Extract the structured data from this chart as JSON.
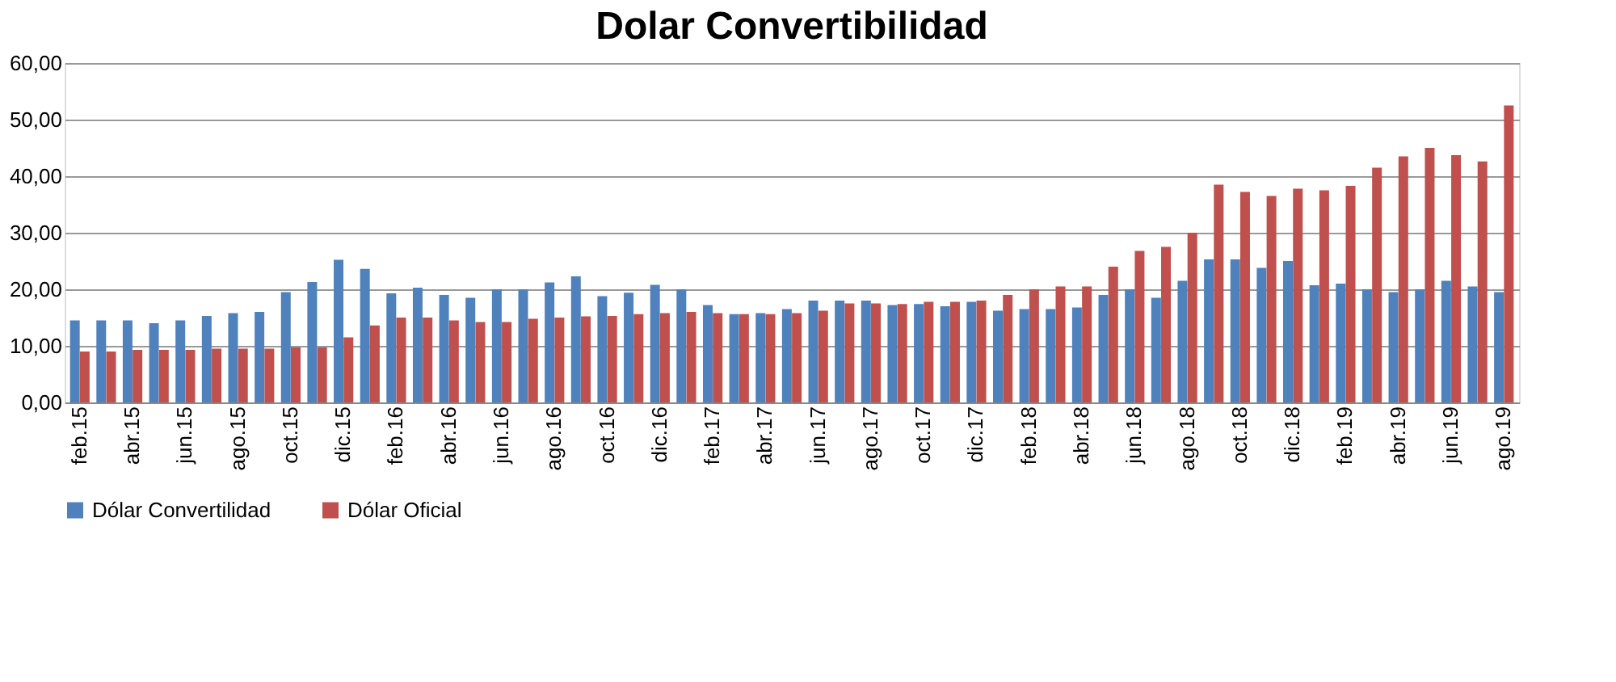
{
  "chart_data": {
    "type": "bar",
    "title": "Dolar Convertibilidad",
    "categories": [
      "feb.15",
      null,
      "abr.15",
      null,
      "jun.15",
      null,
      "ago.15",
      null,
      "oct.15",
      null,
      "dic.15",
      null,
      "feb.16",
      null,
      "abr.16",
      null,
      "jun.16",
      null,
      "ago.16",
      null,
      "oct.16",
      null,
      "dic.16",
      null,
      "feb.17",
      null,
      "abr.17",
      null,
      "jun.17",
      null,
      "ago.17",
      null,
      "oct.17",
      null,
      "dic.17",
      null,
      "feb.18",
      null,
      "abr.18",
      null,
      "jun.18",
      null,
      "ago.18",
      null,
      "oct.18",
      null,
      "dic.18",
      null,
      "feb.19",
      null,
      "abr.19",
      null,
      "jun.19",
      null,
      "ago.19"
    ],
    "series": [
      {
        "name": "Dólar Convertilidad",
        "color": "#4f81bd",
        "values": [
          14.5,
          14.5,
          14.5,
          14,
          14.5,
          15.3,
          15.8,
          16,
          19.5,
          21.3,
          25.2,
          23.6,
          19.3,
          20.3,
          19,
          18.5,
          20,
          20,
          21.2,
          22.3,
          18.8,
          19.4,
          20.8,
          20,
          17.2,
          15.6,
          15.8,
          16.5,
          18,
          18,
          18,
          17.2,
          17.4,
          17,
          17.8,
          16.2,
          16.5,
          16.5,
          16.8,
          19,
          20,
          18.5,
          21.5,
          25.3,
          25.3,
          23.8,
          25,
          20.7,
          21,
          20,
          19.5,
          20,
          21.5,
          20.5,
          19.5
        ]
      },
      {
        "name": "Dólar Oficial",
        "color": "#c0504d",
        "values": [
          9,
          9,
          9.3,
          9.3,
          9.3,
          9.5,
          9.5,
          9.5,
          9.7,
          9.7,
          11.5,
          13.6,
          15,
          15,
          14.5,
          14.2,
          14.2,
          14.8,
          15,
          15.2,
          15.3,
          15.6,
          15.8,
          16,
          15.8,
          15.6,
          15.6,
          15.8,
          16.2,
          17.5,
          17.5,
          17.4,
          17.8,
          17.8,
          18,
          19,
          20,
          20.5,
          20.5,
          24,
          26.8,
          27.5,
          30,
          38.5,
          37.2,
          36.5,
          37.8,
          37.5,
          38.3,
          41.5,
          43.5,
          45,
          43.7,
          42.6,
          52.5
        ]
      }
    ],
    "ylim": [
      0,
      60
    ],
    "yticks": [
      {
        "value": 0,
        "label": "0,00"
      },
      {
        "value": 10,
        "label": "10,00"
      },
      {
        "value": 20,
        "label": "20,00"
      },
      {
        "value": 30,
        "label": "30,00"
      },
      {
        "value": 40,
        "label": "40,00"
      },
      {
        "value": 50,
        "label": "50,00"
      },
      {
        "value": 60,
        "label": "60,00"
      }
    ],
    "grid": "y",
    "legend": "bottom"
  }
}
